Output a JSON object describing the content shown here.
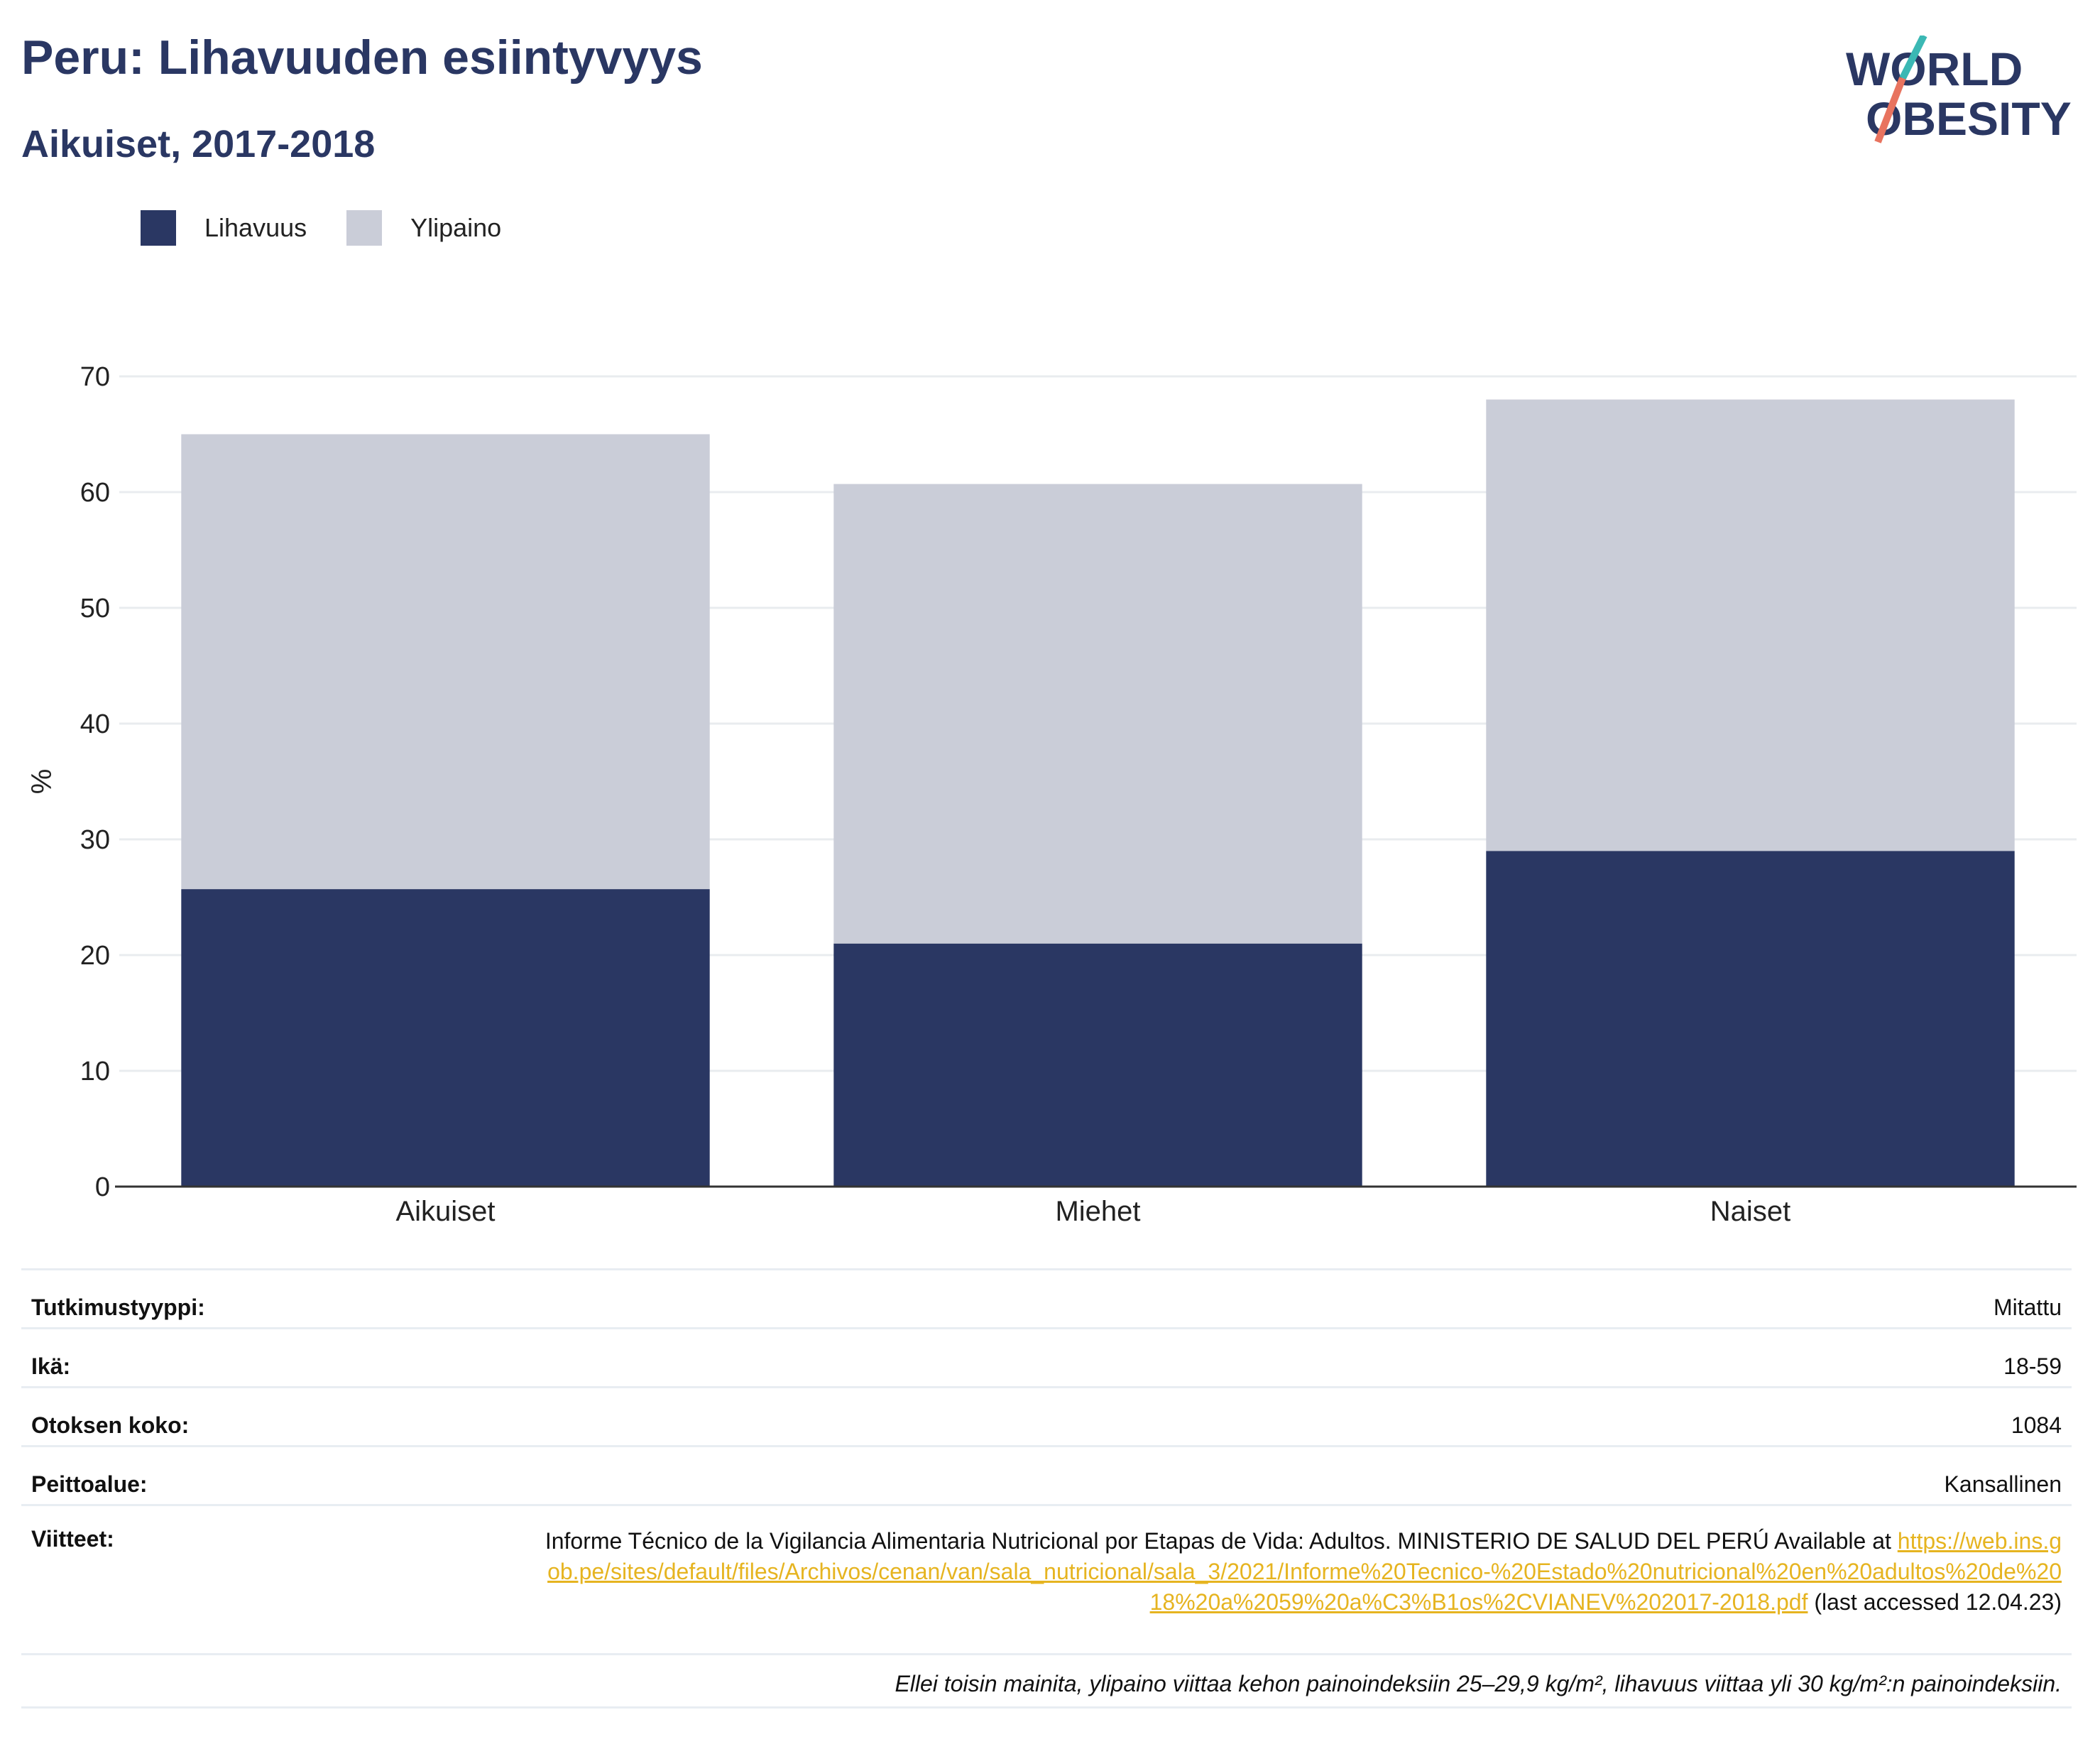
{
  "title": "Peru: Lihavuuden esiintyvyys",
  "subtitle": "Aikuiset, 2017-2018",
  "logo": {
    "line1": "WORLD",
    "line2": "OBESITY"
  },
  "legend": [
    {
      "label": "Lihavuus",
      "color": "#2a3763"
    },
    {
      "label": "Ylipaino",
      "color": "#cacdd8"
    }
  ],
  "chart_data": {
    "type": "bar",
    "stacked": true,
    "categories": [
      "Aikuiset",
      "Miehet",
      "Naiset"
    ],
    "series": [
      {
        "name": "Lihavuus",
        "color": "#2a3763",
        "values": [
          25.7,
          21.0,
          29.0
        ]
      },
      {
        "name": "Ylipaino",
        "color": "#cacdd8",
        "values": [
          39.3,
          39.7,
          39.0
        ]
      }
    ],
    "ylabel": "%",
    "ylim": [
      0,
      70
    ],
    "yticks": [
      0,
      10,
      20,
      30,
      40,
      50,
      60,
      70
    ],
    "grid": true,
    "legend_position": "top-left"
  },
  "info": {
    "study_type": {
      "label": "Tutkimustyyppi:",
      "value": "Mitattu"
    },
    "age": {
      "label": "Ikä:",
      "value": "18-59"
    },
    "sample": {
      "label": "Otoksen koko:",
      "value": "1084"
    },
    "coverage": {
      "label": "Peittoalue:",
      "value": "Kansallinen"
    },
    "refs": {
      "label": "Viitteet:",
      "text": "Informe Técnico de la Vigilancia Alimentaria Nutricional por Etapas de Vida: Adultos. MINISTERIO DE SALUD DEL PERÚ Available at",
      "link": "https://web.ins.gob.pe/sites/default/files/Archivos/cenan/van/sala_nutricional/sala_3/2021/Informe%20Tecnico-%20Estado%20nutricional%20en%20adultos%20de%2018%20a%2059%20a%C3%B1os%2CVIANEV%202017-2018.pdf",
      "suffix": "(last accessed 12.04.23)"
    },
    "footnote": "Ellei toisin mainita, ylipaino viittaa kehon painoindeksiin 25–29,9 kg/m², lihavuus viittaa yli 30 kg/m²:n painoindeksiin."
  },
  "colors": {
    "brand": "#2a3763",
    "accent_teal": "#3bb8b4",
    "accent_coral": "#e8735f",
    "link": "#e6b420"
  }
}
